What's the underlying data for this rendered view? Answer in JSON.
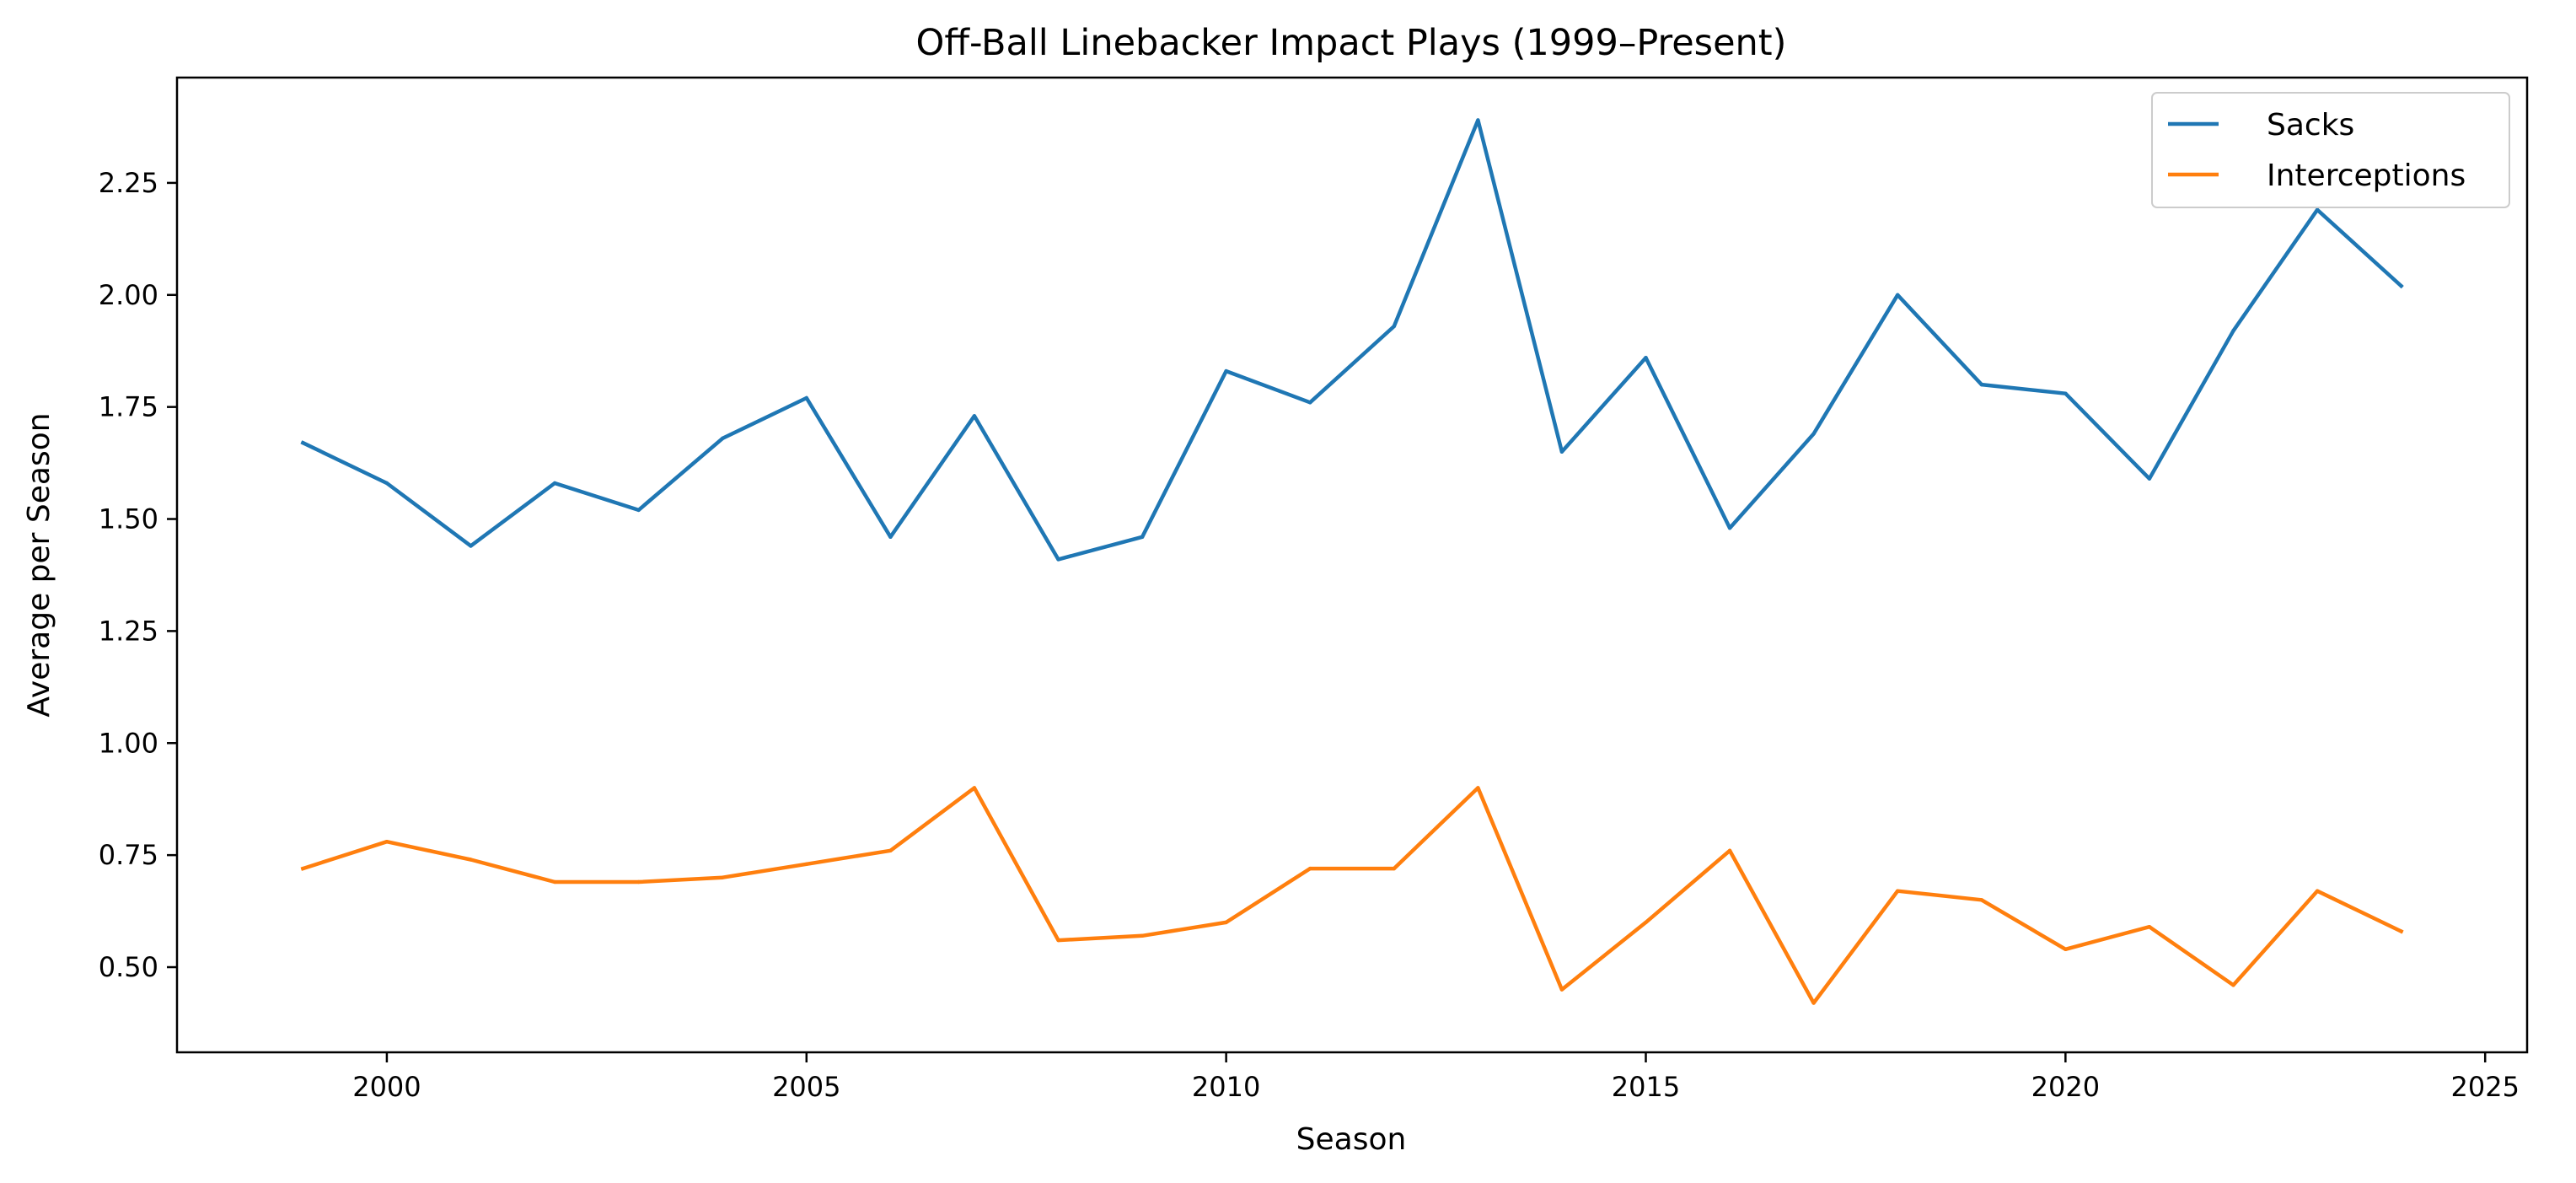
{
  "chart_data": {
    "type": "line",
    "title": "Off-Ball Linebacker Impact Plays (1999–Present)",
    "xlabel": "Season",
    "ylabel": "Average per Season",
    "xlim": [
      1997.5,
      2025.5
    ],
    "ylim": [
      0.31,
      2.485
    ],
    "xticks": [
      2000,
      2005,
      2010,
      2015,
      2020,
      2025
    ],
    "yticks": [
      0.5,
      0.75,
      1.0,
      1.25,
      1.5,
      1.75,
      2.0,
      2.25
    ],
    "xtick_labels": [
      "2000",
      "2005",
      "2010",
      "2015",
      "2020",
      "2025"
    ],
    "ytick_labels": [
      "0.50",
      "0.75",
      "1.00",
      "1.25",
      "1.50",
      "1.75",
      "2.00",
      "2.25"
    ],
    "grid": false,
    "legend_position": "top-right",
    "x": [
      1999,
      2000,
      2001,
      2002,
      2003,
      2004,
      2005,
      2006,
      2007,
      2008,
      2009,
      2010,
      2011,
      2012,
      2013,
      2014,
      2015,
      2016,
      2017,
      2018,
      2019,
      2020,
      2021,
      2022,
      2023,
      2024
    ],
    "series": [
      {
        "name": "Sacks",
        "color": "#1f77b4",
        "values": [
          1.67,
          1.58,
          1.44,
          1.58,
          1.52,
          1.68,
          1.77,
          1.46,
          1.73,
          1.41,
          1.46,
          1.83,
          1.76,
          1.93,
          2.39,
          1.65,
          1.86,
          1.48,
          1.69,
          2.0,
          1.8,
          1.78,
          1.59,
          1.92,
          2.19,
          2.02
        ]
      },
      {
        "name": "Interceptions",
        "color": "#ff7f0e",
        "values": [
          0.72,
          0.78,
          0.74,
          0.69,
          0.69,
          0.7,
          0.73,
          0.76,
          0.9,
          0.56,
          0.57,
          0.6,
          0.72,
          0.72,
          0.9,
          0.45,
          0.6,
          0.76,
          0.42,
          0.67,
          0.65,
          0.54,
          0.59,
          0.46,
          0.67,
          0.58
        ]
      }
    ]
  }
}
